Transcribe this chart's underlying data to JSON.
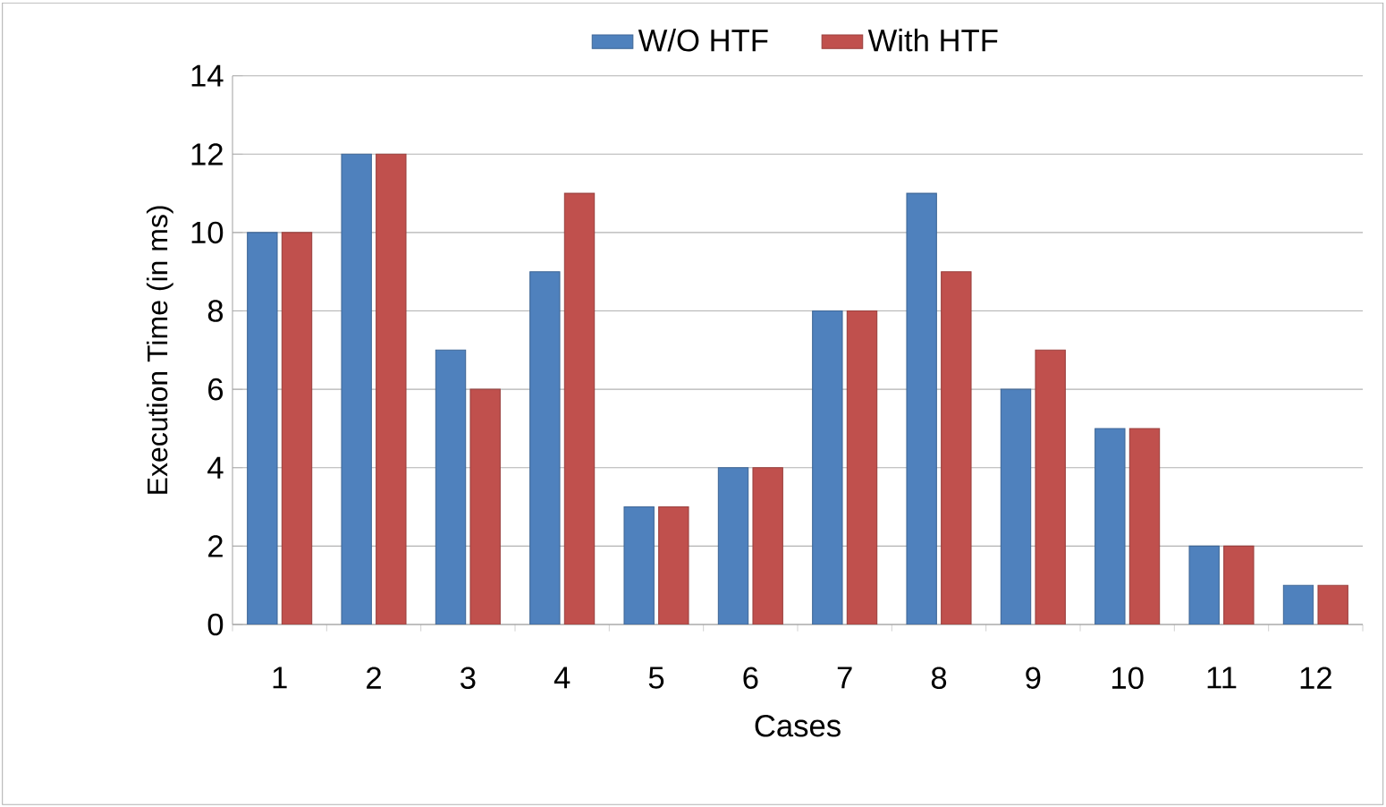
{
  "chart_data": {
    "type": "bar",
    "xlabel": "Cases",
    "ylabel": "Execution Time (in ms)",
    "categories": [
      "1",
      "2",
      "3",
      "4",
      "5",
      "6",
      "7",
      "8",
      "9",
      "10",
      "11",
      "12"
    ],
    "series": [
      {
        "name": "W/O HTF",
        "color": "#4f81bd",
        "values": [
          10,
          12,
          7,
          9,
          3,
          4,
          8,
          11,
          6,
          5,
          2,
          1
        ]
      },
      {
        "name": "With HTF",
        "color": "#c0504d",
        "values": [
          10,
          12,
          6,
          11,
          3,
          4,
          8,
          9,
          7,
          5,
          2,
          1
        ]
      }
    ],
    "ylim": [
      0,
      14
    ],
    "yticks": [
      0,
      2,
      4,
      6,
      8,
      10,
      12,
      14
    ],
    "grid": "y",
    "legend": "top"
  }
}
